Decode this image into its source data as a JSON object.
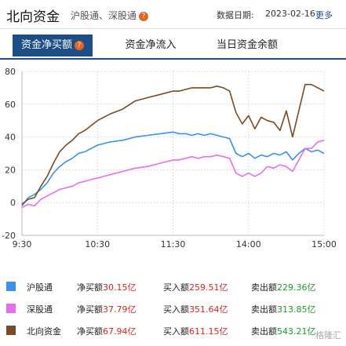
{
  "header": {
    "title": "北向资金",
    "subtitle": "沪股通、深股通",
    "help_glyph": "?",
    "date_label": "数据日期:",
    "date": "2023-02-16",
    "more": "更多"
  },
  "tabs": [
    {
      "label": "资金净买额",
      "active": true,
      "has_help": true
    },
    {
      "label": "资金净流入",
      "active": false,
      "has_help": true
    },
    {
      "label": "当日资金余额",
      "active": false,
      "has_help": false
    }
  ],
  "legend": [
    {
      "name": "沪股通",
      "net_label": "净买额",
      "net": "30.15亿",
      "buy_label": "买入额",
      "buy": "259.51亿",
      "sell_label": "卖出额",
      "sell": "229.36亿",
      "color": "#3b8fee"
    },
    {
      "name": "深股通",
      "net_label": "净买额",
      "net": "37.79亿",
      "buy_label": "买入额",
      "buy": "351.64亿",
      "sell_label": "卖出额",
      "sell": "313.85亿",
      "color": "#e86cf0"
    },
    {
      "name": "北向资金",
      "net_label": "净买额",
      "net": "67.94亿",
      "buy_label": "买入额",
      "buy": "611.15亿",
      "sell_label": "卖出额",
      "sell": "543.21亿",
      "color": "#7a4a23"
    }
  ],
  "watermark_text": "格隆汇",
  "chart_data": {
    "type": "line",
    "ylim": [
      -20,
      80
    ],
    "yticks": [
      80,
      60,
      40,
      20,
      0,
      -20
    ],
    "xticks": [
      "9:30",
      "10:30",
      "11:30",
      "14:00",
      "15:00"
    ],
    "grid": true,
    "x_unit": "minutes since 9:30 (trading minutes)",
    "series": [
      {
        "name": "沪股通",
        "color": "#3b8fee",
        "x": [
          0,
          5,
          10,
          15,
          20,
          25,
          30,
          35,
          40,
          45,
          50,
          55,
          60,
          70,
          80,
          90,
          100,
          110,
          120,
          125,
          130,
          135,
          140,
          145,
          150,
          155,
          160,
          165,
          170,
          175,
          180,
          185,
          190,
          195,
          200,
          205,
          210,
          215,
          220,
          225,
          230,
          235,
          240
        ],
        "values": [
          -2,
          3,
          5,
          8,
          12,
          18,
          22,
          25,
          27,
          30,
          31,
          33,
          35,
          37,
          38,
          40,
          41,
          42,
          43,
          42,
          42,
          41,
          42,
          41,
          42,
          41,
          40,
          39,
          30,
          28,
          30,
          27,
          29,
          28,
          30,
          29,
          31,
          26,
          30,
          33,
          31,
          32,
          30
        ]
      },
      {
        "name": "深股通",
        "color": "#e86cf0",
        "x": [
          0,
          5,
          10,
          15,
          20,
          25,
          30,
          35,
          40,
          45,
          50,
          55,
          60,
          70,
          80,
          90,
          100,
          110,
          120,
          125,
          130,
          135,
          140,
          145,
          150,
          155,
          160,
          165,
          170,
          175,
          180,
          185,
          190,
          195,
          200,
          205,
          210,
          215,
          220,
          225,
          230,
          235,
          240
        ],
        "values": [
          -3,
          -1,
          -2,
          2,
          4,
          6,
          8,
          9,
          10,
          12,
          13,
          14,
          15,
          17,
          19,
          21,
          22,
          24,
          26,
          26,
          27,
          28,
          27,
          28,
          28,
          29,
          28,
          27,
          18,
          16,
          18,
          16,
          18,
          22,
          21,
          23,
          22,
          19,
          26,
          33,
          33,
          37,
          38
        ]
      },
      {
        "name": "北向资金",
        "color": "#7a4a23",
        "x": [
          0,
          5,
          10,
          15,
          20,
          25,
          30,
          35,
          40,
          45,
          50,
          55,
          60,
          70,
          80,
          90,
          100,
          110,
          120,
          125,
          130,
          135,
          140,
          145,
          150,
          155,
          160,
          165,
          170,
          175,
          180,
          185,
          190,
          195,
          200,
          205,
          210,
          215,
          220,
          225,
          230,
          235,
          240
        ],
        "values": [
          -1,
          2,
          3,
          10,
          16,
          24,
          31,
          35,
          38,
          42,
          44,
          47,
          50,
          54,
          57,
          62,
          64,
          66,
          68,
          68,
          69,
          70,
          70,
          70,
          70,
          71,
          70,
          68,
          55,
          48,
          53,
          45,
          52,
          50,
          49,
          44,
          56,
          40,
          56,
          72,
          72,
          70,
          68
        ]
      }
    ]
  }
}
